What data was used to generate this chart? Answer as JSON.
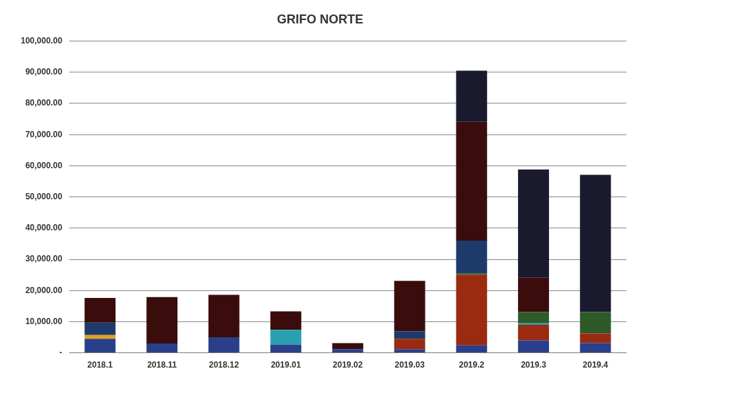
{
  "chart_data": {
    "type": "bar",
    "title": "GRIFO NORTE",
    "stacked": true,
    "grid": "y",
    "legend": false,
    "categories": [
      "2018.1",
      "2018.11",
      "2018.12",
      "2019.01",
      "2019.02",
      "2019.03",
      "2019.2",
      "2019.3",
      "2019.4"
    ],
    "ylim": [
      0,
      100000
    ],
    "yticks": [
      {
        "value": 0,
        "label": "-"
      },
      {
        "value": 10000,
        "label": "10,000.00"
      },
      {
        "value": 20000,
        "label": "20,000.00"
      },
      {
        "value": 30000,
        "label": "30,000.00"
      },
      {
        "value": 40000,
        "label": "40,000.00"
      },
      {
        "value": 50000,
        "label": "50,000.00"
      },
      {
        "value": 60000,
        "label": "60,000.00"
      },
      {
        "value": 70000,
        "label": "70,000.00"
      },
      {
        "value": 80000,
        "label": "80,000.00"
      },
      {
        "value": 90000,
        "label": "90,000.00"
      },
      {
        "value": 100000,
        "label": "100,000.00"
      }
    ],
    "series": [
      {
        "color": "#2a3f8a",
        "values": [
          4500,
          3000,
          5000,
          2600,
          1200,
          1200,
          2400,
          4000,
          3100
        ]
      },
      {
        "color": "#e0a020",
        "values": [
          1200,
          null,
          null,
          null,
          null,
          null,
          null,
          null,
          null
        ]
      },
      {
        "color": "#9a2a10",
        "values": [
          null,
          null,
          null,
          null,
          null,
          3300,
          22600,
          5000,
          3100
        ]
      },
      {
        "color": "#2aa0b0",
        "values": [
          null,
          null,
          null,
          4800,
          null,
          null,
          null,
          500,
          null
        ]
      },
      {
        "color": "#1e3a6a",
        "values": [
          4000,
          null,
          null,
          null,
          null,
          2400,
          null,
          null,
          null
        ]
      },
      {
        "color": "#2e5a2a",
        "values": [
          null,
          null,
          null,
          null,
          null,
          null,
          500,
          3600,
          6900
        ]
      },
      {
        "color": "#1e3a6a",
        "values": [
          null,
          null,
          null,
          null,
          null,
          null,
          10500,
          null,
          null
        ]
      },
      {
        "color": "#3a0c0c",
        "values": [
          7900,
          14900,
          13600,
          5900,
          1900,
          16200,
          38100,
          11000,
          null
        ]
      },
      {
        "color": "#1a1a2e",
        "values": [
          null,
          null,
          null,
          null,
          null,
          null,
          16400,
          34700,
          44000
        ]
      }
    ]
  }
}
